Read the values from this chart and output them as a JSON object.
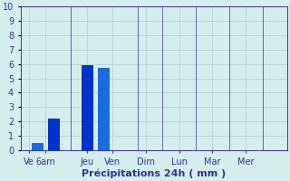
{
  "bar_positions": [
    0.5,
    1.0,
    2.0,
    2.5
  ],
  "bar_values": [
    0.5,
    2.2,
    5.9,
    5.7
  ],
  "bar_colors": [
    "#1a6be0",
    "#0033cc",
    "#0033cc",
    "#1a6be0"
  ],
  "bar_width": 0.35,
  "background_color": "#d4eeee",
  "grid_color": "#aacccc",
  "text_color": "#333388",
  "xlabel": "Précipitations 24h ( mm )",
  "xlabel_fontsize": 8,
  "tick_fontsize": 7,
  "ylim": [
    0,
    10
  ],
  "yticks": [
    0,
    1,
    2,
    3,
    4,
    5,
    6,
    7,
    8,
    9,
    10
  ],
  "xlim": [
    0,
    8
  ],
  "xtick_positions": [
    0.75,
    2.25,
    3.5,
    4.75,
    5.75,
    6.75,
    7.25
  ],
  "xtick_labels": [
    "Ve6am",
    "Jeu",
    "Ven",
    "Dim",
    "Lun",
    "Mar",
    "Mer"
  ],
  "xsep_positions": [
    1.5,
    3.0,
    4.25,
    5.25,
    6.25,
    7.0
  ]
}
